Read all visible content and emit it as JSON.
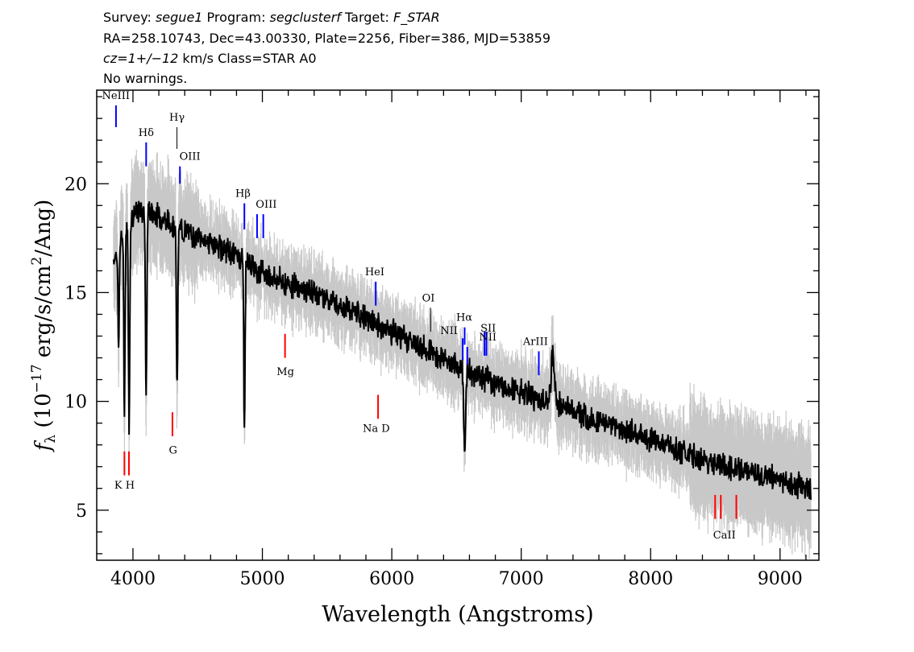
{
  "header": {
    "line1": {
      "survey_label": "Survey: ",
      "survey": "segue1",
      "program_label": " Program: ",
      "program": "segclusterf",
      "target_label": " Target: ",
      "target": "F_STAR"
    },
    "line2": "RA=258.10743, Dec=43.00330, Plate=2256, Fiber=386, MJD=53859",
    "line3": {
      "cz": "cz=1+/−12",
      "rest": " km/s Class=STAR A0"
    },
    "line4": "No warnings."
  },
  "colors": {
    "flux": "#000000",
    "noise": "#c8c8c8",
    "emission": "#0000ff",
    "absorption": "#ff0000",
    "galaxy": "#000000"
  },
  "chart_data": {
    "type": "line",
    "xlabel": "Wavelength (Angstroms)",
    "ylabel_parts": {
      "f": "f",
      "sub": "λ",
      "open": " (10",
      "exp": "−17",
      "mid": " erg/s/cm",
      "sq": "2",
      "close": "/Ang)"
    },
    "xlim": [
      3720,
      9300
    ],
    "ylim": [
      2.7,
      24.3
    ],
    "xticks": [
      4000,
      5000,
      6000,
      7000,
      8000,
      9000
    ],
    "xtick_labels": [
      "4000",
      "5000",
      "6000",
      "7000",
      "8000",
      "9000"
    ],
    "yticks": [
      5,
      10,
      15,
      20
    ],
    "ytick_labels": [
      "5",
      "10",
      "15",
      "20"
    ],
    "continuum": {
      "x": [
        3850,
        3900,
        4000,
        4100,
        4200,
        4400,
        4600,
        4800,
        5000,
        5200,
        5500,
        5800,
        6000,
        6300,
        6500,
        6700,
        7000,
        7300,
        7600,
        8000,
        8400,
        8800,
        9000,
        9240
      ],
      "y": [
        16.5,
        17.4,
        18.6,
        18.8,
        18.5,
        17.8,
        17.3,
        16.7,
        15.9,
        15.4,
        14.8,
        13.8,
        13.2,
        12.3,
        11.6,
        11.1,
        10.4,
        9.8,
        9.1,
        8.3,
        7.3,
        6.7,
        6.4,
        5.9
      ]
    },
    "absorption_features": [
      {
        "x": 3889,
        "y": 12.3
      },
      {
        "x": 3934,
        "y": 9.6
      },
      {
        "x": 3970,
        "y": 8.7
      },
      {
        "x": 4102,
        "y": 9.7
      },
      {
        "x": 4341,
        "y": 10.2
      },
      {
        "x": 4861,
        "y": 9.0
      },
      {
        "x": 6563,
        "y": 7.6
      }
    ],
    "emission_features": [
      {
        "x": 7245,
        "y": 12.1
      }
    ],
    "line_ids": [
      {
        "name": "NeIII",
        "x": 3869,
        "color": "blue",
        "y1": 22.6,
        "y2": 23.6
      },
      {
        "name": "Hδ",
        "x": 4102,
        "color": "blue",
        "y1": 20.8,
        "y2": 21.9
      },
      {
        "name": "Hγ",
        "x": 4340,
        "color": "black",
        "y1": 21.6,
        "y2": 22.6
      },
      {
        "name": "OIII",
        "x": 4363,
        "color": "blue",
        "y1": 20.0,
        "y2": 20.8
      },
      {
        "name": "Hβ",
        "x": 4861,
        "color": "blue",
        "y1": 17.9,
        "y2": 19.1
      },
      {
        "name": "OIII",
        "x": 4959,
        "color": "blue",
        "y1": 17.5,
        "y2": 18.6
      },
      {
        "name": "OIII",
        "x": 5007,
        "color": "blue",
        "y1": 17.5,
        "y2": 18.6
      },
      {
        "name": "HeI",
        "x": 5876,
        "color": "blue",
        "y1": 14.4,
        "y2": 15.5
      },
      {
        "name": "OI",
        "x": 6300,
        "color": "black",
        "y1": 13.2,
        "y2": 14.3
      },
      {
        "name": "NII",
        "x": 6548,
        "color": "blue",
        "y1": 11.9,
        "y2": 12.9
      },
      {
        "name": "Hα",
        "x": 6563,
        "color": "blue",
        "y1": 12.6,
        "y2": 13.4
      },
      {
        "name": "NII",
        "x": 6583,
        "color": "blue",
        "y1": 11.7,
        "y2": 12.5
      },
      {
        "name": "SII",
        "x": 6716,
        "color": "blue",
        "y1": 12.1,
        "y2": 13.2
      },
      {
        "name": "SII",
        "x": 6731,
        "color": "blue",
        "y1": 12.1,
        "y2": 13.2
      },
      {
        "name": "ArIII",
        "x": 7136,
        "color": "blue",
        "y1": 11.2,
        "y2": 12.3
      },
      {
        "name": "K",
        "x": 3934,
        "color": "red",
        "y1": 6.6,
        "y2": 7.7
      },
      {
        "name": "H",
        "x": 3969,
        "color": "red",
        "y1": 6.6,
        "y2": 7.7
      },
      {
        "name": "G",
        "x": 4305,
        "color": "red",
        "y1": 8.4,
        "y2": 9.5
      },
      {
        "name": "Mg",
        "x": 5175,
        "color": "red",
        "y1": 12.0,
        "y2": 13.1
      },
      {
        "name": "Na",
        "x": 5894,
        "color": "red",
        "y1": 9.2,
        "y2": 10.3
      },
      {
        "name": "CaII",
        "x": 8498,
        "color": "red",
        "y1": 4.6,
        "y2": 5.7
      },
      {
        "name": "CaII",
        "x": 8542,
        "color": "red",
        "y1": 4.6,
        "y2": 5.7
      },
      {
        "name": "CaII",
        "x": 8662,
        "color": "red",
        "y1": 4.6,
        "y2": 5.7
      }
    ],
    "line_labels": [
      {
        "text": "NeIII",
        "x": 3868,
        "y": 23.9
      },
      {
        "text": "Hδ",
        "x": 4102,
        "y": 22.2
      },
      {
        "text": "Hγ",
        "x": 4340,
        "y": 22.9
      },
      {
        "text": "OIII",
        "x": 4440,
        "y": 21.1
      },
      {
        "text": "Hβ",
        "x": 4850,
        "y": 19.4
      },
      {
        "text": "OIII",
        "x": 5030,
        "y": 18.9
      },
      {
        "text": "HeI",
        "x": 5868,
        "y": 15.8
      },
      {
        "text": "OI",
        "x": 6283,
        "y": 14.6
      },
      {
        "text": "NII",
        "x": 6442,
        "y": 13.1
      },
      {
        "text": "Hα",
        "x": 6560,
        "y": 13.7
      },
      {
        "text": "SII",
        "x": 6745,
        "y": 13.2
      },
      {
        "text": "NII",
        "x": 6742,
        "y": 12.8
      },
      {
        "text": "ArIII",
        "x": 7110,
        "y": 12.6
      },
      {
        "text": "K H",
        "x": 3935,
        "y": 6.0
      },
      {
        "text": "G",
        "x": 4310,
        "y": 7.6
      },
      {
        "text": "Mg",
        "x": 5178,
        "y": 11.2
      },
      {
        "text": "Na  D",
        "x": 5880,
        "y": 8.6
      },
      {
        "text": "CaII",
        "x": 8570,
        "y": 3.7
      }
    ]
  }
}
